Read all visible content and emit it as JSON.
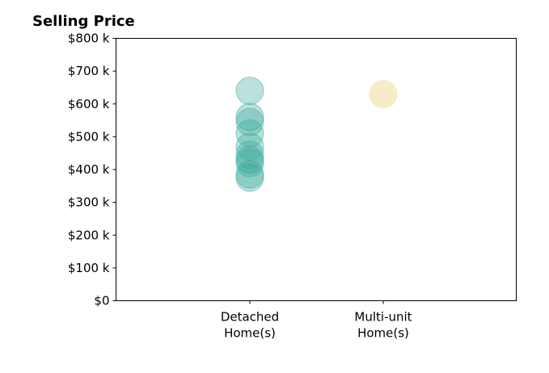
{
  "chart_data": {
    "type": "scatter",
    "title": "Selling Price",
    "xlabel": "",
    "ylabel": "",
    "categories": [
      "Detached\nHome(s)",
      "Multi-unit\nHome(s)"
    ],
    "ylim": [
      0,
      800000
    ],
    "yticks": [
      {
        "value": 0,
        "label": "$0"
      },
      {
        "value": 100000,
        "label": "$100 k"
      },
      {
        "value": 200000,
        "label": "$200 k"
      },
      {
        "value": 300000,
        "label": "$300 k"
      },
      {
        "value": 400000,
        "label": "$400 k"
      },
      {
        "value": 500000,
        "label": "$500 k"
      },
      {
        "value": 600000,
        "label": "$600 k"
      },
      {
        "value": 700000,
        "label": "$700 k"
      },
      {
        "value": 800000,
        "label": "$800 k"
      }
    ],
    "grid": false,
    "series": [
      {
        "category_index": 0,
        "color": "#3aa99a",
        "values": [
          640000,
          560000,
          545000,
          510000,
          470000,
          445000,
          430000,
          420000,
          385000,
          375000
        ]
      },
      {
        "category_index": 1,
        "color": "#f1dc9e",
        "values": [
          630000
        ]
      }
    ]
  }
}
